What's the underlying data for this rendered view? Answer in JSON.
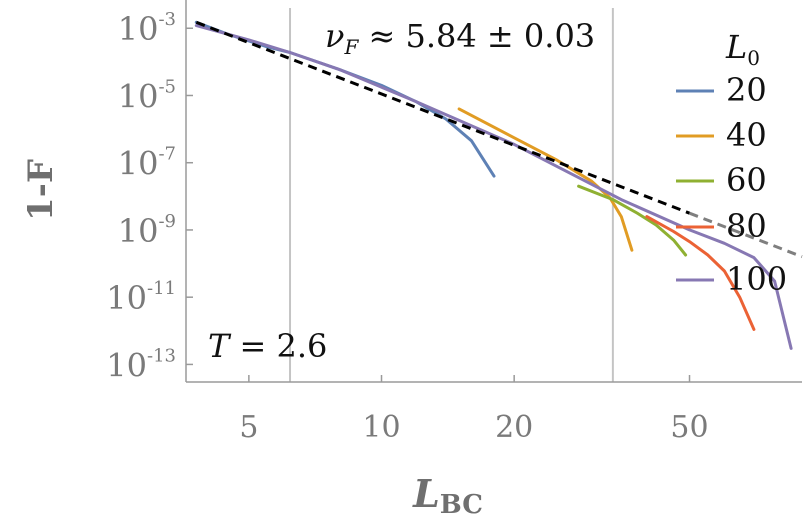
{
  "chart_data": {
    "type": "line",
    "xscale": "log",
    "yscale": "log",
    "xlim": [
      3.6,
      90
    ],
    "ylim": [
      3e-14,
      0.004
    ],
    "xlabel_main": "L",
    "xlabel_sub": "BC",
    "ylabel": "1-F",
    "xticks": [
      {
        "value": 5,
        "label": "5"
      },
      {
        "value": 10,
        "label": "10"
      },
      {
        "value": 20,
        "label": "20"
      },
      {
        "value": 50,
        "label": "50"
      }
    ],
    "yticks": [
      {
        "value": 0.001,
        "base": "10",
        "exp": "-3"
      },
      {
        "value": 1e-05,
        "base": "10",
        "exp": "-5"
      },
      {
        "value": 1e-07,
        "base": "10",
        "exp": "-7"
      },
      {
        "value": 1e-09,
        "base": "10",
        "exp": "-9"
      },
      {
        "value": 1e-11,
        "base": "10",
        "exp": "-11"
      },
      {
        "value": 1e-13,
        "base": "10",
        "exp": "-13"
      }
    ],
    "vlines": [
      6.2,
      33.5
    ],
    "legend_title_main": "L",
    "legend_title_sub": "0",
    "legend_position": "right",
    "annotation_fit": {
      "main": "ν",
      "sub": "F",
      "rest": " ≈ 5.84 ± 0.03"
    },
    "annotation_T": {
      "main": "T",
      "rest": " = 2.6"
    },
    "fit_line": {
      "x": [
        3.8,
        90
      ],
      "y": [
        0.0015,
        1.6e-10
      ],
      "color": "#000000",
      "extrapolated_color": "#7f7f7f",
      "extrapolated_from": 50
    },
    "series": [
      {
        "name": "20",
        "color": "#5e81b5",
        "x": [
          3.8,
          4.5,
          5.5,
          6.2,
          8,
          10,
          12,
          14,
          16,
          18
        ],
        "y": [
          0.0015,
          0.00065,
          0.00028,
          0.00019,
          6e-05,
          2e-05,
          6.5e-06,
          2e-06,
          4.5e-07,
          4e-08
        ]
      },
      {
        "name": "40",
        "color": "#e19c24",
        "x": [
          15,
          20,
          25,
          30,
          33,
          35,
          37
        ],
        "y": [
          4e-06,
          5.5e-07,
          1.2e-07,
          2.8e-08,
          9e-09,
          2.5e-09,
          2.5e-10
        ]
      },
      {
        "name": "60",
        "color": "#8fb032",
        "x": [
          28,
          33.5,
          38,
          42,
          46,
          49
        ],
        "y": [
          2e-08,
          8e-09,
          3.2e-09,
          1.4e-09,
          5e-10,
          1.8e-10
        ]
      },
      {
        "name": "80",
        "color": "#eb6235",
        "x": [
          40,
          46,
          50,
          55,
          60,
          65,
          70
        ],
        "y": [
          2.5e-09,
          9e-10,
          4.5e-10,
          1.8e-10,
          6e-11,
          1e-11,
          1.1e-12
        ]
      },
      {
        "name": "100",
        "color": "#8778b3",
        "x": [
          3.8,
          5,
          6.2,
          8,
          12,
          20,
          35,
          50,
          60,
          70,
          78,
          85
        ],
        "y": [
          0.0012,
          0.00045,
          0.00019,
          6e-05,
          6.5e-06,
          3.5e-07,
          8e-09,
          1e-09,
          4e-10,
          1.5e-10,
          3e-11,
          3e-13
        ]
      }
    ]
  }
}
